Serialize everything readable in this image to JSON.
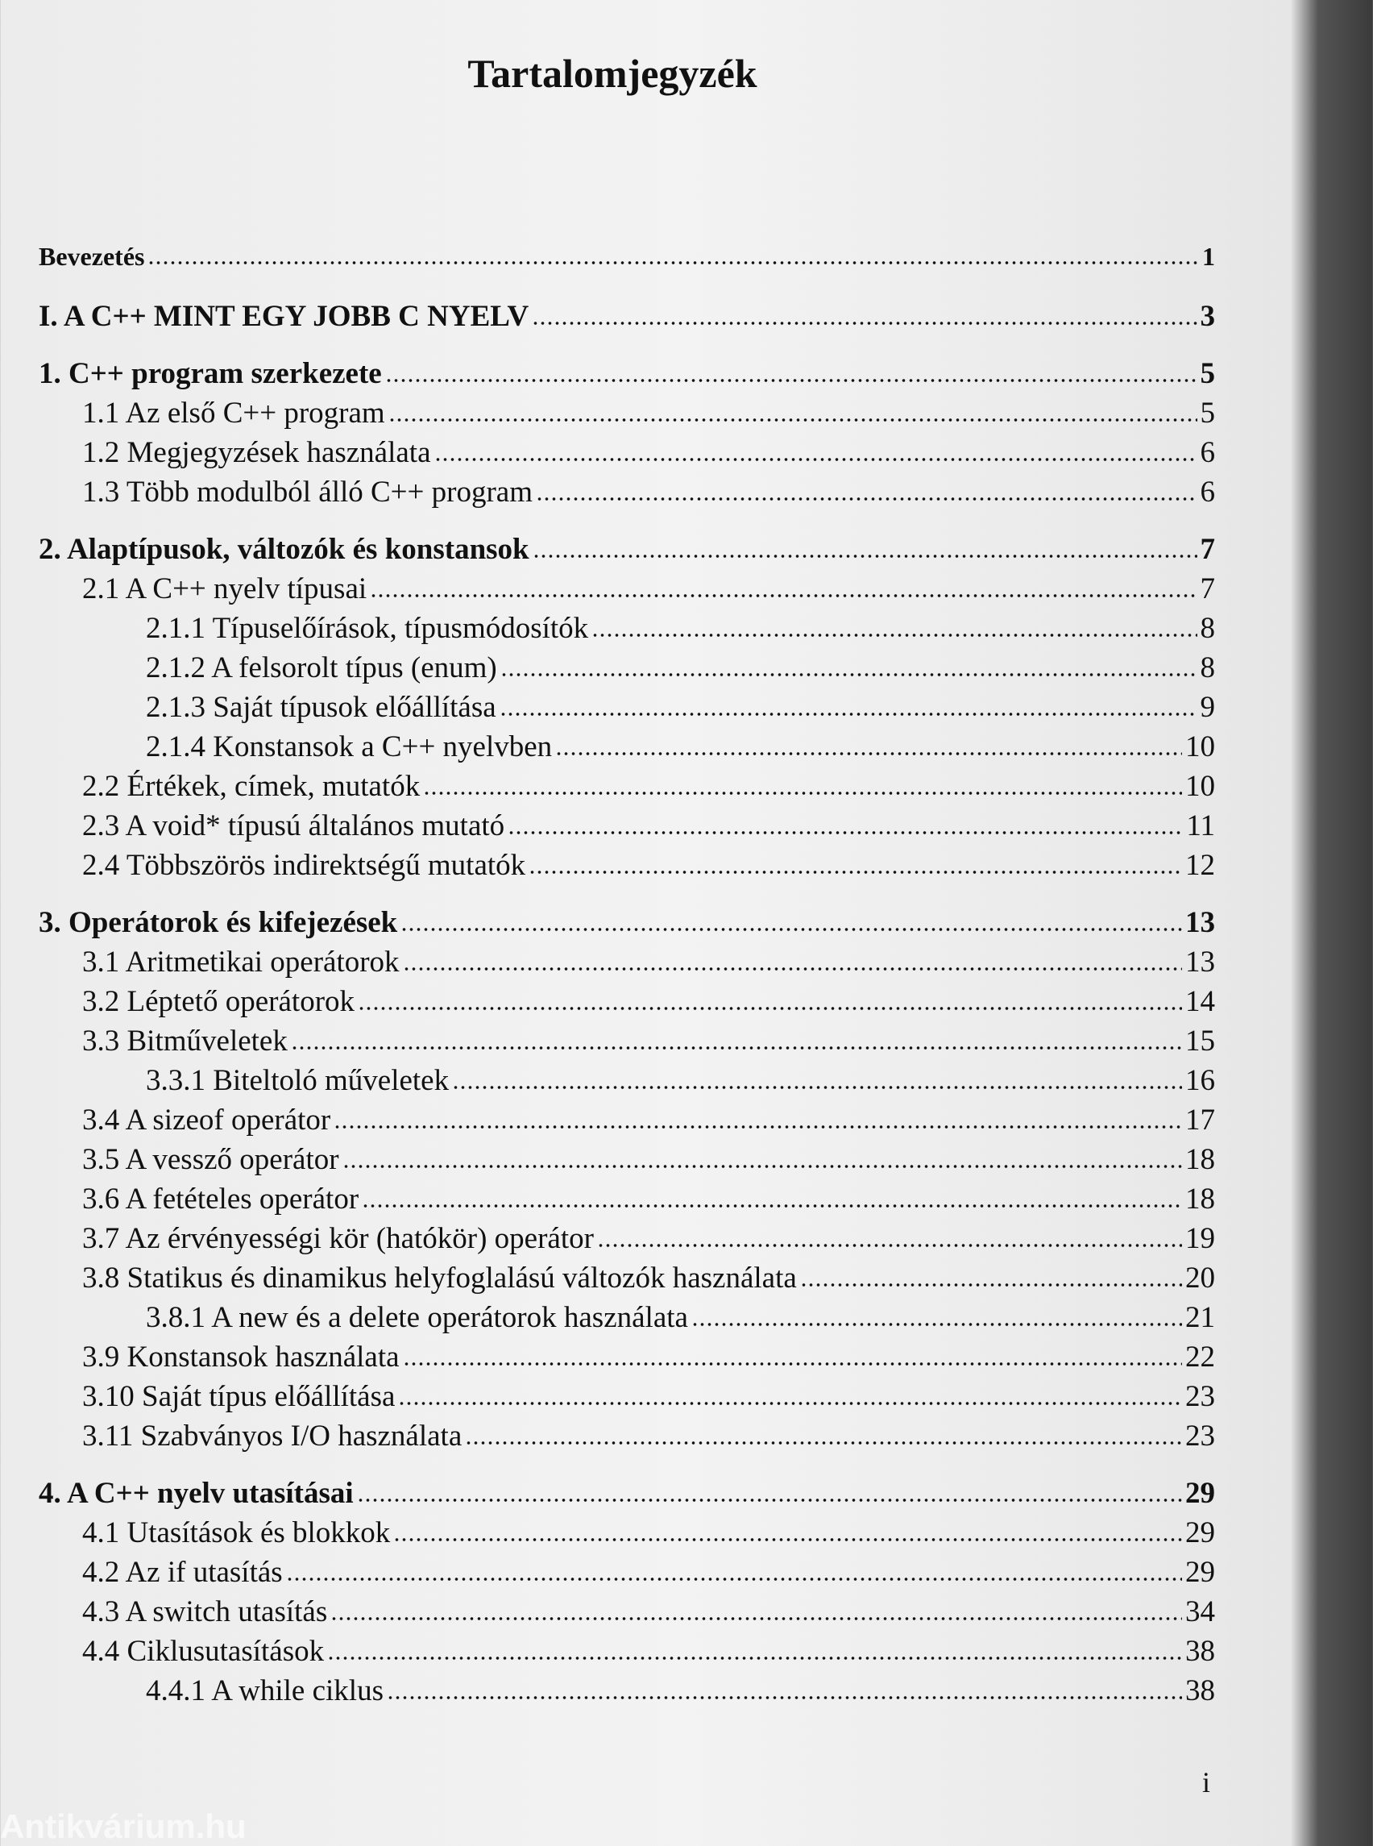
{
  "title": "Tartalomjegyzék",
  "entries": [
    {
      "label": "Bevezetés",
      "page": 1,
      "level": 0,
      "bold": true
    },
    {
      "label": "I. A C++ MINT EGY JOBB C NYELV",
      "page": 3,
      "level": 0,
      "bold": true
    },
    {
      "label": "1. C++ program szerkezete",
      "page": 5,
      "level": 0,
      "bold": true
    },
    {
      "label": "1.1 Az első C++ program",
      "page": 5,
      "level": 1,
      "bold": false
    },
    {
      "label": "1.2 Megjegyzések használata",
      "page": 6,
      "level": 1,
      "bold": false
    },
    {
      "label": "1.3 Több modulból álló C++ program",
      "page": 6,
      "level": 1,
      "bold": false
    },
    {
      "label": "2. Alaptípusok, változók és konstansok",
      "page": 7,
      "level": 0,
      "bold": true
    },
    {
      "label": "2.1 A C++ nyelv típusai",
      "page": 7,
      "level": 1,
      "bold": false
    },
    {
      "label": "2.1.1 Típuselőírások, típusmódosítók",
      "page": 8,
      "level": 2,
      "bold": false
    },
    {
      "label": "2.1.2 A felsorolt típus (enum)",
      "page": 8,
      "level": 2,
      "bold": false
    },
    {
      "label": "2.1.3 Saját típusok előállítása",
      "page": 9,
      "level": 2,
      "bold": false
    },
    {
      "label": "2.1.4 Konstansok a C++ nyelvben",
      "page": 10,
      "level": 2,
      "bold": false
    },
    {
      "label": "2.2 Értékek, címek, mutatók",
      "page": 10,
      "level": 1,
      "bold": false
    },
    {
      "label": "2.3 A void* típusú általános mutató",
      "page": 11,
      "level": 1,
      "bold": false
    },
    {
      "label": "2.4 Többszörös indirektségű mutatók",
      "page": 12,
      "level": 1,
      "bold": false
    },
    {
      "label": "3. Operátorok és kifejezések",
      "page": 13,
      "level": 0,
      "bold": true
    },
    {
      "label": "3.1 Aritmetikai operátorok",
      "page": 13,
      "level": 1,
      "bold": false
    },
    {
      "label": "3.2 Léptető operátorok",
      "page": 14,
      "level": 1,
      "bold": false
    },
    {
      "label": "3.3 Bitműveletek",
      "page": 15,
      "level": 1,
      "bold": false
    },
    {
      "label": "3.3.1 Biteltoló műveletek",
      "page": 16,
      "level": 2,
      "bold": false
    },
    {
      "label": "3.4 A sizeof operátor",
      "page": 17,
      "level": 1,
      "bold": false
    },
    {
      "label": "3.5 A vessző operátor",
      "page": 18,
      "level": 1,
      "bold": false
    },
    {
      "label": "3.6 A fetételes operátor",
      "page": 18,
      "level": 1,
      "bold": false
    },
    {
      "label": "3.7 Az érvényességi kör (hatókör) operátor",
      "page": 19,
      "level": 1,
      "bold": false
    },
    {
      "label": "3.8 Statikus és dinamikus helyfoglalású változók használata",
      "page": 20,
      "level": 1,
      "bold": false
    },
    {
      "label": "3.8.1 A new és a delete operátorok használata",
      "page": 21,
      "level": 2,
      "bold": false
    },
    {
      "label": "3.9 Konstansok használata",
      "page": 22,
      "level": 1,
      "bold": false
    },
    {
      "label": "3.10 Saját típus előállítása",
      "page": 23,
      "level": 1,
      "bold": false
    },
    {
      "label": "3.11 Szabványos I/O használata",
      "page": 23,
      "level": 1,
      "bold": false
    },
    {
      "label": "4. A C++ nyelv utasításai",
      "page": 29,
      "level": 0,
      "bold": true
    },
    {
      "label": "4.1 Utasítások és blokkok",
      "page": 29,
      "level": 1,
      "bold": false
    },
    {
      "label": "4.2 Az if utasítás",
      "page": 29,
      "level": 1,
      "bold": false
    },
    {
      "label": "4.3 A switch utasítás",
      "page": 34,
      "level": 1,
      "bold": false
    },
    {
      "label": "4.4 Ciklusutasítások",
      "page": 38,
      "level": 1,
      "bold": false
    },
    {
      "label": "4.4.1 A while ciklus",
      "page": 38,
      "level": 2,
      "bold": false
    }
  ],
  "page_number": "i",
  "watermark": "Antikvárium.hu"
}
